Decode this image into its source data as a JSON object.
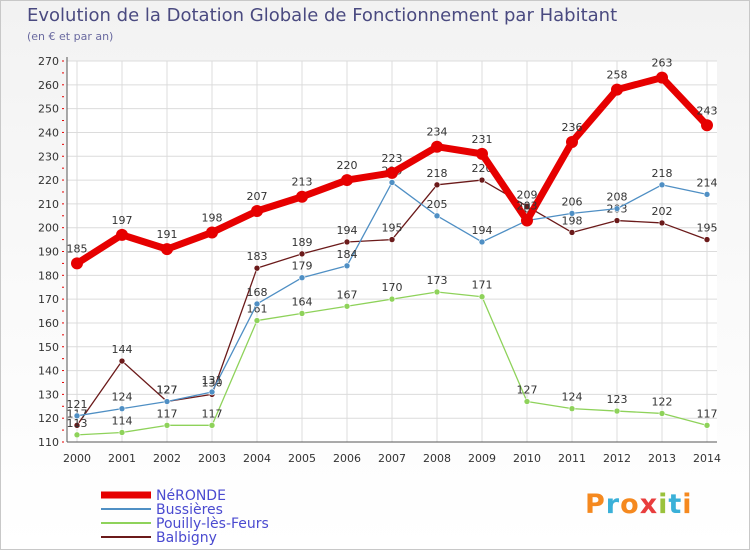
{
  "title": "Evolution de la Dotation Globale de Fonctionnement par Habitant",
  "subtitle": "(en € et par an)",
  "logo": {
    "text": "Proxiti",
    "colors": [
      "#f5891f",
      "#3ab0d8",
      "#f5891f",
      "#e83d3d",
      "#9ac23c",
      "#3ab0d8",
      "#f5891f"
    ]
  },
  "chart_data": {
    "type": "line",
    "title": "Evolution de la Dotation Globale de Fonctionnement par Habitant",
    "subtitle": "(en € et par an)",
    "categories": [
      "2000",
      "2001",
      "2002",
      "2003",
      "2004",
      "2005",
      "2006",
      "2007",
      "2008",
      "2009",
      "2010",
      "2011",
      "2012",
      "2013",
      "2014"
    ],
    "ylim": [
      110,
      270
    ],
    "yticks": [
      110,
      120,
      130,
      140,
      150,
      160,
      170,
      180,
      190,
      200,
      210,
      220,
      230,
      240,
      250,
      260,
      270
    ],
    "grid": true,
    "legend_position": "bottom-left",
    "series": [
      {
        "name": "Balbigny",
        "color": "#6b1a1a",
        "line_width": 1.3,
        "marker_radius": 3,
        "values": [
          117,
          144,
          127,
          130,
          183,
          189,
          194,
          195,
          218,
          220,
          209,
          198,
          203,
          202,
          195
        ],
        "labels": [
          "117",
          "144",
          "127",
          "130",
          "183",
          "189",
          "194",
          "195",
          "218",
          "220",
          "209",
          "198",
          "203",
          "202",
          "195"
        ]
      },
      {
        "name": "Pouilly-lès-Feurs",
        "color": "#8ed25a",
        "line_width": 1.3,
        "marker_radius": 3,
        "values": [
          113,
          114,
          117,
          117,
          161,
          164,
          167,
          170,
          173,
          171,
          127,
          124,
          123,
          122,
          117
        ],
        "labels": [
          "113",
          "114",
          "117",
          "117",
          "161",
          "164",
          "167",
          "170",
          "173",
          "171",
          "127",
          "124",
          "123",
          "122",
          "117"
        ]
      },
      {
        "name": "Bussières",
        "color": "#4f8fc4",
        "line_width": 1.3,
        "marker_radius": 3,
        "values": [
          121,
          124,
          127,
          131,
          168,
          179,
          184,
          219,
          205,
          194,
          203,
          206,
          208,
          218,
          214
        ],
        "labels": [
          "121",
          "124",
          "127",
          "131",
          "168",
          "179",
          "184",
          "219",
          "205",
          "194",
          "203",
          "206",
          "208",
          "218",
          "214"
        ]
      },
      {
        "name": "NéRONDE",
        "color": "#e60000",
        "line_width": 7,
        "marker_radius": 6,
        "values": [
          185,
          197,
          191,
          198,
          207,
          213,
          220,
          223,
          234,
          231,
          203,
          236,
          258,
          263,
          243
        ],
        "labels": [
          "185",
          "197",
          "191",
          "198",
          "207",
          "213",
          "220",
          "223",
          "234",
          "231",
          "203",
          "236",
          "258",
          "263",
          "243"
        ]
      }
    ],
    "legend": [
      "NéRONDE",
      "Bussières",
      "Pouilly-lès-Feurs",
      "Balbigny"
    ]
  }
}
